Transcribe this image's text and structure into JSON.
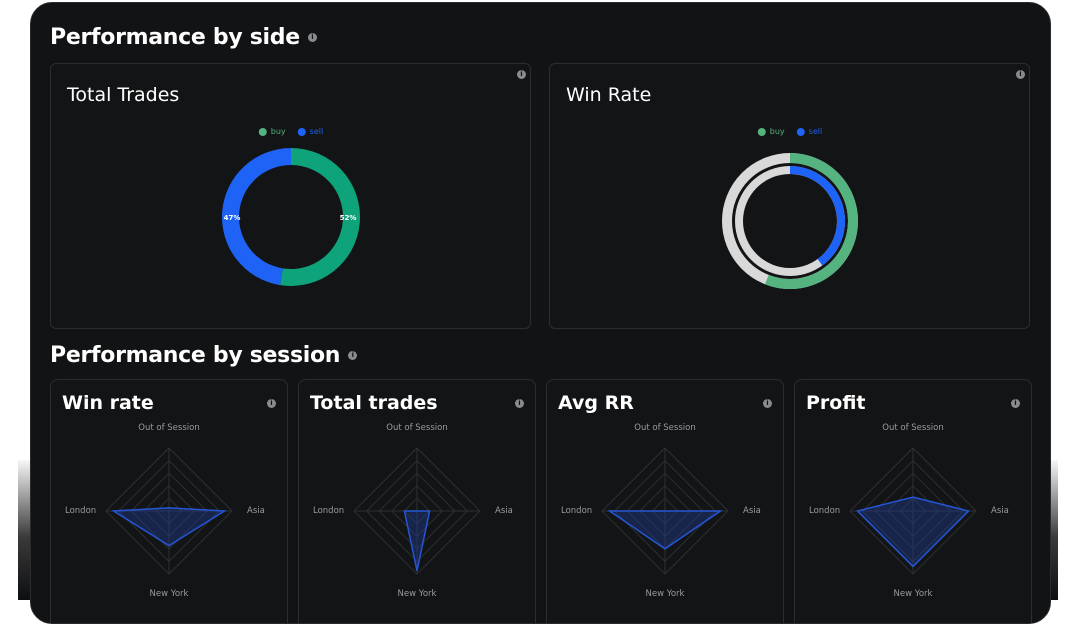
{
  "colors": {
    "background": "#121314",
    "card": "#131416",
    "buy": "#0ea37a",
    "sell": "#1e63f5",
    "buy_winrate": "#54b37f",
    "track": "#d9d9d9",
    "radar_fill": "#1e3a8a"
  },
  "sections": {
    "side_title": "Performance by side",
    "session_title": "Performance by session"
  },
  "side_cards": {
    "total_trades": {
      "title": "Total Trades",
      "legend": [
        "buy",
        "sell"
      ],
      "buy_label": "52%",
      "sell_label": "47%"
    },
    "win_rate": {
      "title": "Win Rate",
      "legend": [
        "buy",
        "sell"
      ]
    }
  },
  "session_cards": [
    {
      "title": "Win rate"
    },
    {
      "title": "Total trades"
    },
    {
      "title": "Avg RR"
    },
    {
      "title": "Profit"
    }
  ],
  "axis_labels": {
    "top": "Out of Session",
    "left": "London",
    "right": "Asia",
    "bottom": "New York"
  },
  "chart_data": [
    {
      "type": "pie",
      "title": "Total Trades",
      "categories": [
        "buy",
        "sell"
      ],
      "values": [
        52,
        47
      ]
    },
    {
      "type": "pie",
      "title": "Win Rate",
      "series": [
        {
          "name": "buy",
          "values": [
            0.56
          ]
        },
        {
          "name": "sell",
          "values": [
            0.4
          ]
        }
      ]
    },
    {
      "type": "radar",
      "title": "Win rate",
      "categories": [
        "Out of Session",
        "Asia",
        "New York",
        "London"
      ],
      "values": [
        0.05,
        0.88,
        0.55,
        0.88
      ],
      "max": 1
    },
    {
      "type": "radar",
      "title": "Total trades",
      "categories": [
        "Out of Session",
        "Asia",
        "New York",
        "London"
      ],
      "values": [
        0.0,
        0.2,
        0.95,
        0.2
      ],
      "max": 1
    },
    {
      "type": "radar",
      "title": "Avg RR",
      "categories": [
        "Out of Session",
        "Asia",
        "New York",
        "London"
      ],
      "values": [
        0.0,
        0.88,
        0.6,
        0.88
      ],
      "max": 1
    },
    {
      "type": "radar",
      "title": "Profit",
      "categories": [
        "Out of Session",
        "Asia",
        "New York",
        "London"
      ],
      "values": [
        0.22,
        0.88,
        0.88,
        0.88
      ],
      "max": 1
    }
  ]
}
